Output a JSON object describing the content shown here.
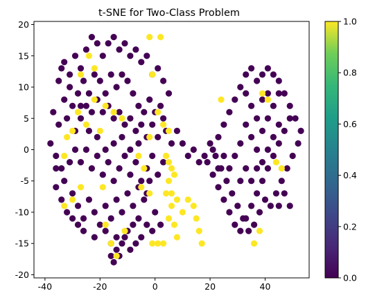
{
  "chart_data": {
    "type": "scatter",
    "title": "t-SNE for Two-Class Problem",
    "xlabel": "",
    "ylabel": "",
    "xlim": [
      -44,
      56
    ],
    "ylim": [
      -20.5,
      20.5
    ],
    "x_ticks": [
      -40,
      -20,
      0,
      20,
      40
    ],
    "y_ticks": [
      -20,
      -15,
      -10,
      -5,
      0,
      5,
      10,
      15,
      20
    ],
    "grid": false,
    "colorbar": {
      "cmap": "viridis",
      "range": [
        0.0,
        1.0
      ],
      "ticks": [
        0.0,
        0.2,
        0.4,
        0.6,
        0.8,
        1.0
      ],
      "tick_labels": [
        "0.0",
        "0.2",
        "0.4",
        "0.6",
        "0.8",
        "1.0"
      ],
      "low_color": "#440154",
      "high_color": "#fde725"
    },
    "colors": {
      "class_0": "#440154",
      "class_1": "#fde725"
    },
    "series": [
      {
        "class": 0,
        "points": [
          [
            -36,
            -1
          ],
          [
            -34,
            -3
          ],
          [
            -38,
            1
          ],
          [
            -35,
            4
          ],
          [
            -37,
            6
          ],
          [
            -33,
            8
          ],
          [
            -35,
            11
          ],
          [
            -31,
            12
          ],
          [
            -33,
            14
          ],
          [
            -29,
            15
          ],
          [
            -27,
            13
          ],
          [
            -25,
            16
          ],
          [
            -23,
            18
          ],
          [
            -21,
            17
          ],
          [
            -19,
            15
          ],
          [
            -17,
            17
          ],
          [
            -15,
            18
          ],
          [
            -13,
            16
          ],
          [
            -11,
            17
          ],
          [
            -9,
            15
          ],
          [
            -7,
            16
          ],
          [
            -5,
            14
          ],
          [
            -3,
            15
          ],
          [
            -1,
            12
          ],
          [
            1,
            13
          ],
          [
            3,
            11
          ],
          [
            5,
            9
          ],
          [
            -2,
            8
          ],
          [
            -4,
            6
          ],
          [
            -6,
            7
          ],
          [
            -8,
            9
          ],
          [
            -10,
            11
          ],
          [
            -12,
            12
          ],
          [
            -14,
            10
          ],
          [
            -16,
            12
          ],
          [
            -18,
            9
          ],
          [
            -20,
            11
          ],
          [
            -22,
            12
          ],
          [
            -24,
            9
          ],
          [
            -26,
            11
          ],
          [
            -28,
            9
          ],
          [
            -30,
            7
          ],
          [
            -32,
            5
          ],
          [
            -29,
            3
          ],
          [
            -27,
            5
          ],
          [
            -25,
            7
          ],
          [
            -23,
            6
          ],
          [
            -21,
            8
          ],
          [
            -19,
            6
          ],
          [
            -17,
            7
          ],
          [
            -15,
            5
          ],
          [
            -13,
            6
          ],
          [
            -11,
            4
          ],
          [
            -9,
            5
          ],
          [
            -7,
            3
          ],
          [
            -5,
            4
          ],
          [
            -3,
            2
          ],
          [
            -1,
            4
          ],
          [
            1,
            2
          ],
          [
            3,
            5
          ],
          [
            -36,
            -3
          ],
          [
            -33,
            -5
          ],
          [
            -31,
            -2
          ],
          [
            -29,
            0
          ],
          [
            -27,
            -2
          ],
          [
            -25,
            0
          ],
          [
            -23,
            -3
          ],
          [
            -21,
            -1
          ],
          [
            -19,
            -4
          ],
          [
            -17,
            -2
          ],
          [
            -15,
            -5
          ],
          [
            -13,
            -3
          ],
          [
            -11,
            -1
          ],
          [
            -9,
            -4
          ],
          [
            -7,
            -2
          ],
          [
            -5,
            -5
          ],
          [
            -3,
            -3
          ],
          [
            -1,
            -1
          ],
          [
            1,
            -4
          ],
          [
            3,
            -2
          ],
          [
            -36,
            -6
          ],
          [
            -34,
            -8
          ],
          [
            -32,
            -10
          ],
          [
            -30,
            -7
          ],
          [
            -28,
            -9
          ],
          [
            -26,
            -11
          ],
          [
            -24,
            -8
          ],
          [
            -22,
            -10
          ],
          [
            -20,
            -12
          ],
          [
            -18,
            -9
          ],
          [
            -16,
            -11
          ],
          [
            -14,
            -8
          ],
          [
            -12,
            -10
          ],
          [
            -10,
            -7
          ],
          [
            -8,
            -9
          ],
          [
            -6,
            -6
          ],
          [
            -4,
            -8
          ],
          [
            -2,
            -5
          ],
          [
            -30,
            -11
          ],
          [
            -28,
            -12
          ],
          [
            -26,
            -13
          ],
          [
            -22,
            -14
          ],
          [
            -18,
            -13
          ],
          [
            -16,
            -15
          ],
          [
            -14,
            -14
          ],
          [
            -12,
            -15
          ],
          [
            -10,
            -13
          ],
          [
            -8,
            -12
          ],
          [
            -6,
            -11
          ],
          [
            -16,
            -17
          ],
          [
            -15,
            -18
          ],
          [
            -13,
            -17
          ],
          [
            -14,
            -16
          ],
          [
            -34,
            13
          ],
          [
            -31,
            10
          ],
          [
            -27,
            7
          ],
          [
            -24,
            3
          ],
          [
            -21,
            2
          ],
          [
            -18,
            0
          ],
          [
            -15,
            1
          ],
          [
            -12,
            2
          ],
          [
            -9,
            0
          ],
          [
            -6,
            1
          ],
          [
            -3,
            -7
          ],
          [
            0,
            -10
          ],
          [
            2,
            -12
          ],
          [
            -1,
            -13
          ],
          [
            -3,
            -12
          ],
          [
            -5,
            -14
          ],
          [
            -7,
            -15
          ],
          [
            -9,
            -16
          ],
          [
            -11,
            -14
          ],
          [
            0,
            6
          ],
          [
            2,
            7
          ],
          [
            4,
            3
          ],
          [
            6,
            1
          ],
          [
            8,
            3
          ],
          [
            10,
            1
          ],
          [
            12,
            -1
          ],
          [
            14,
            0
          ],
          [
            16,
            -2
          ],
          [
            18,
            -1
          ],
          [
            20,
            1
          ],
          [
            22,
            -1
          ],
          [
            24,
            -3
          ],
          [
            26,
            -5
          ],
          [
            28,
            -7
          ],
          [
            30,
            -9
          ],
          [
            32,
            -11
          ],
          [
            34,
            -13
          ],
          [
            36,
            -12
          ],
          [
            38,
            -10
          ],
          [
            40,
            -8
          ],
          [
            42,
            -9
          ],
          [
            44,
            -7
          ],
          [
            46,
            -5
          ],
          [
            48,
            -3
          ],
          [
            50,
            -1
          ],
          [
            52,
            1
          ],
          [
            53,
            3
          ],
          [
            51,
            5
          ],
          [
            49,
            7
          ],
          [
            47,
            9
          ],
          [
            45,
            11
          ],
          [
            43,
            12
          ],
          [
            41,
            13
          ],
          [
            39,
            12
          ],
          [
            37,
            11
          ],
          [
            35,
            13
          ],
          [
            33,
            12
          ],
          [
            31,
            10
          ],
          [
            29,
            8
          ],
          [
            27,
            6
          ],
          [
            25,
            4
          ],
          [
            23,
            2
          ],
          [
            21,
            0
          ],
          [
            19,
            -2
          ],
          [
            21,
            -4
          ],
          [
            23,
            -6
          ],
          [
            25,
            -8
          ],
          [
            27,
            -10
          ],
          [
            29,
            -12
          ],
          [
            31,
            -13
          ],
          [
            33,
            -11
          ],
          [
            35,
            -9
          ],
          [
            37,
            -7
          ],
          [
            39,
            -5
          ],
          [
            41,
            -3
          ],
          [
            43,
            -1
          ],
          [
            45,
            1
          ],
          [
            47,
            3
          ],
          [
            49,
            5
          ],
          [
            33,
            4
          ],
          [
            35,
            2
          ],
          [
            37,
            0
          ],
          [
            39,
            -2
          ],
          [
            41,
            0
          ],
          [
            43,
            2
          ],
          [
            45,
            4
          ],
          [
            31,
            1
          ],
          [
            29,
            -1
          ],
          [
            27,
            -3
          ],
          [
            25,
            -1
          ],
          [
            23,
            -3
          ],
          [
            31,
            -5
          ],
          [
            33,
            -3
          ],
          [
            35,
            -5
          ],
          [
            37,
            -3
          ],
          [
            39,
            3
          ],
          [
            41,
            5
          ],
          [
            43,
            7
          ],
          [
            45,
            9
          ],
          [
            35,
            7
          ],
          [
            37,
            5
          ],
          [
            39,
            8
          ],
          [
            41,
            9
          ],
          [
            33,
            9
          ],
          [
            47,
            -7
          ],
          [
            49,
            -9
          ],
          [
            45,
            -9
          ]
        ]
      },
      {
        "class": 1,
        "points": [
          [
            -33,
            -1
          ],
          [
            -32,
            2
          ],
          [
            -30,
            3
          ],
          [
            -28,
            6
          ],
          [
            -25,
            4
          ],
          [
            -22,
            13
          ],
          [
            -24,
            15
          ],
          [
            -27,
            12
          ],
          [
            -20,
            3
          ],
          [
            -18,
            7
          ],
          [
            -15,
            6
          ],
          [
            -12,
            5
          ],
          [
            -2,
            18
          ],
          [
            2,
            18
          ],
          [
            -1,
            12
          ],
          [
            1,
            6
          ],
          [
            3,
            4
          ],
          [
            5,
            3
          ],
          [
            -2,
            2
          ],
          [
            4,
            -1
          ],
          [
            5,
            -2
          ],
          [
            6,
            -3
          ],
          [
            7,
            -4
          ],
          [
            5,
            -5
          ],
          [
            4,
            -7
          ],
          [
            6,
            -9
          ],
          [
            5,
            -11
          ],
          [
            7,
            -12
          ],
          [
            3,
            -15
          ],
          [
            1,
            -15
          ],
          [
            -1,
            -15
          ],
          [
            8,
            -14
          ],
          [
            12,
            -8
          ],
          [
            14,
            -9
          ],
          [
            15,
            -11
          ],
          [
            16,
            -13
          ],
          [
            17,
            -15
          ],
          [
            -11,
            -13
          ],
          [
            -14,
            -17
          ],
          [
            -16,
            -15
          ],
          [
            -18,
            -12
          ],
          [
            -27,
            -6
          ],
          [
            -33,
            -9
          ],
          [
            -22,
            8
          ],
          [
            36,
            -15
          ],
          [
            38,
            -13
          ],
          [
            46,
            -3
          ],
          [
            44,
            -2
          ],
          [
            39,
            9
          ],
          [
            41,
            8
          ],
          [
            24,
            8
          ],
          [
            -6,
            -1
          ],
          [
            -4,
            -3
          ],
          [
            -5,
            -6
          ],
          [
            -2,
            -7
          ],
          [
            -30,
            -8
          ],
          [
            6,
            -7
          ],
          [
            8,
            -8
          ],
          [
            10,
            -10
          ],
          [
            -19,
            -6
          ]
        ]
      }
    ]
  }
}
